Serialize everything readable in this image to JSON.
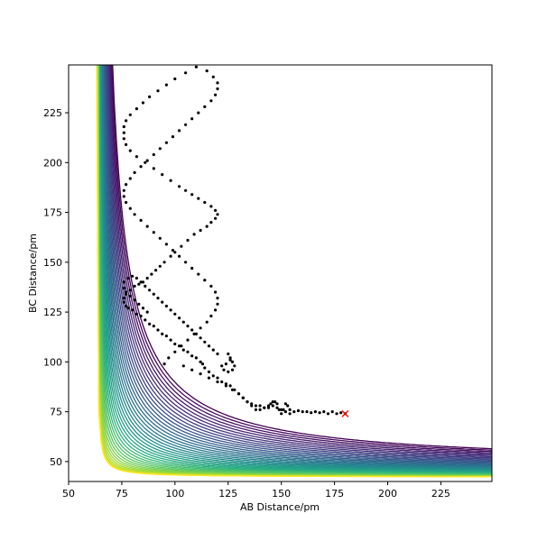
{
  "chart_data": {
    "type": "contour",
    "xlabel": "AB Distance/pm",
    "ylabel": "BC Distance/pm",
    "xlim": [
      50,
      249
    ],
    "ylim": [
      40,
      249
    ],
    "x_ticks": [
      50,
      75,
      100,
      125,
      150,
      175,
      200,
      225
    ],
    "y_ticks": [
      50,
      75,
      100,
      125,
      150,
      175,
      200,
      225
    ],
    "grid": false,
    "legend": "none",
    "colormap": "viridis",
    "colors": [
      "#440154",
      "#472c7a",
      "#3b518b",
      "#2c718e",
      "#21908d",
      "#27ad81",
      "#5cc863",
      "#aadc32",
      "#fde725"
    ],
    "contours": {
      "count": 40,
      "asymptote_x": 63,
      "asymptote_y": 42
    },
    "trajectory": {
      "marker_color": "#000000",
      "end_marker": "x",
      "end_marker_color": "#ff0000",
      "end_point": [
        180,
        74
      ],
      "points": [
        [
          180,
          74
        ],
        [
          178,
          74.5
        ],
        [
          176,
          74
        ],
        [
          174,
          75
        ],
        [
          172,
          74
        ],
        [
          170,
          75
        ],
        [
          168,
          74.5
        ],
        [
          166,
          75
        ],
        [
          164,
          74.5
        ],
        [
          162,
          75
        ],
        [
          160,
          75
        ],
        [
          158,
          75.5
        ],
        [
          156,
          75
        ],
        [
          154,
          76
        ],
        [
          153,
          78
        ],
        [
          152,
          79
        ],
        [
          151,
          76
        ],
        [
          150,
          74
        ],
        [
          149,
          76
        ],
        [
          148,
          79
        ],
        [
          147,
          80
        ],
        [
          146,
          80
        ],
        [
          145,
          79
        ],
        [
          144,
          77
        ],
        [
          142,
          77
        ],
        [
          140,
          78
        ],
        [
          138,
          78
        ],
        [
          136,
          79
        ],
        [
          134,
          80
        ],
        [
          132,
          82
        ],
        [
          130,
          84
        ],
        [
          128,
          86
        ],
        [
          126,
          88
        ],
        [
          124,
          89
        ],
        [
          122,
          90
        ],
        [
          120,
          92
        ],
        [
          118,
          93
        ],
        [
          116,
          95
        ],
        [
          114,
          97
        ],
        [
          113,
          99
        ],
        [
          112,
          100
        ],
        [
          110,
          102
        ],
        [
          108,
          103
        ],
        [
          106,
          105
        ],
        [
          104,
          106
        ],
        [
          102,
          108
        ],
        [
          100,
          109
        ],
        [
          98,
          111
        ],
        [
          96,
          113
        ],
        [
          94,
          114
        ],
        [
          92,
          116
        ],
        [
          90,
          118
        ],
        [
          88,
          119
        ],
        [
          86,
          121
        ],
        [
          84,
          123
        ],
        [
          82,
          124
        ],
        [
          80,
          126
        ],
        [
          78,
          127
        ],
        [
          77,
          128
        ],
        [
          76,
          130
        ],
        [
          76,
          132
        ],
        [
          77,
          134
        ],
        [
          79,
          136
        ],
        [
          81,
          138
        ],
        [
          83,
          139
        ],
        [
          85,
          140
        ],
        [
          87,
          142
        ],
        [
          89,
          144
        ],
        [
          91,
          146
        ],
        [
          93,
          148
        ],
        [
          95,
          150
        ],
        [
          98,
          153
        ],
        [
          100,
          155
        ],
        [
          103,
          158
        ],
        [
          106,
          161
        ],
        [
          109,
          164
        ],
        [
          112,
          166
        ],
        [
          115,
          168
        ],
        [
          117,
          170
        ],
        [
          119,
          172
        ],
        [
          120,
          174
        ],
        [
          119,
          176
        ],
        [
          117,
          178
        ],
        [
          114,
          180
        ],
        [
          111,
          182
        ],
        [
          108,
          184
        ],
        [
          105,
          186
        ],
        [
          102,
          188
        ],
        [
          98,
          191
        ],
        [
          94,
          194
        ],
        [
          90,
          197
        ],
        [
          86,
          200
        ],
        [
          82,
          203
        ],
        [
          79,
          206
        ],
        [
          77,
          209
        ],
        [
          76,
          212
        ],
        [
          76,
          215
        ],
        [
          76,
          218
        ],
        [
          77,
          221
        ],
        [
          79,
          224
        ],
        [
          82,
          227
        ],
        [
          85,
          230
        ],
        [
          88,
          233
        ],
        [
          92,
          236
        ],
        [
          96,
          239
        ],
        [
          100,
          242
        ],
        [
          105,
          245
        ],
        [
          110,
          248
        ],
        [
          115,
          246
        ],
        [
          118,
          243
        ],
        [
          120,
          240
        ],
        [
          120,
          237
        ],
        [
          119,
          234
        ],
        [
          117,
          231
        ],
        [
          114,
          228
        ],
        [
          111,
          225
        ],
        [
          108,
          222
        ],
        [
          105,
          219
        ],
        [
          102,
          216
        ],
        [
          99,
          213
        ],
        [
          96,
          210
        ],
        [
          93,
          207
        ],
        [
          90,
          204
        ],
        [
          87,
          201
        ],
        [
          84,
          198
        ],
        [
          81,
          195
        ],
        [
          79,
          192
        ],
        [
          77,
          189
        ],
        [
          76,
          186
        ],
        [
          76,
          183
        ],
        [
          77,
          180
        ],
        [
          79,
          177
        ],
        [
          81,
          174
        ],
        [
          84,
          171
        ],
        [
          87,
          168
        ],
        [
          90,
          165
        ],
        [
          93,
          162
        ],
        [
          96,
          159
        ],
        [
          99,
          156
        ],
        [
          102,
          153
        ],
        [
          105,
          150
        ],
        [
          108,
          147
        ],
        [
          111,
          144
        ],
        [
          114,
          141
        ],
        [
          117,
          138
        ],
        [
          119,
          135
        ],
        [
          120,
          132
        ],
        [
          120,
          129
        ],
        [
          119,
          126
        ],
        [
          117,
          123
        ],
        [
          115,
          120
        ],
        [
          112,
          117
        ],
        [
          109,
          114
        ],
        [
          106,
          111
        ],
        [
          103,
          108
        ],
        [
          100,
          105
        ],
        [
          97,
          102
        ],
        [
          95,
          99
        ],
        [
          104,
          98
        ],
        [
          108,
          96
        ],
        [
          112,
          94
        ],
        [
          116,
          92
        ],
        [
          120,
          90
        ],
        [
          124,
          88
        ],
        [
          127,
          86
        ],
        [
          130,
          84
        ],
        [
          132,
          82
        ],
        [
          134,
          80
        ],
        [
          136,
          78
        ],
        [
          138,
          76
        ],
        [
          140,
          76
        ],
        [
          142,
          77
        ],
        [
          144,
          78
        ],
        [
          146,
          78
        ],
        [
          148,
          77
        ],
        [
          150,
          76
        ],
        [
          152,
          75
        ],
        [
          154,
          74
        ],
        [
          126,
          101
        ],
        [
          127,
          100
        ],
        [
          128,
          98
        ],
        [
          127,
          96
        ],
        [
          125,
          95
        ],
        [
          123,
          96
        ],
        [
          122,
          98
        ],
        [
          124,
          99
        ],
        [
          126,
          102
        ],
        [
          125,
          104
        ],
        [
          120,
          104
        ],
        [
          118,
          106
        ],
        [
          116,
          108
        ],
        [
          114,
          110
        ],
        [
          112,
          112
        ],
        [
          110,
          114
        ],
        [
          108,
          116
        ],
        [
          106,
          118
        ],
        [
          104,
          120
        ],
        [
          102,
          122
        ],
        [
          100,
          124
        ],
        [
          98,
          126
        ],
        [
          96,
          128
        ],
        [
          94,
          130
        ],
        [
          92,
          132
        ],
        [
          90,
          134
        ],
        [
          88,
          136
        ],
        [
          86,
          138
        ],
        [
          84,
          140
        ],
        [
          82,
          142
        ],
        [
          80,
          143
        ],
        [
          78,
          142
        ],
        [
          76,
          140
        ],
        [
          76,
          137
        ],
        [
          77,
          135
        ],
        [
          79,
          133
        ],
        [
          81,
          131
        ],
        [
          83,
          129
        ],
        [
          85,
          127
        ],
        [
          87,
          125
        ]
      ]
    }
  }
}
